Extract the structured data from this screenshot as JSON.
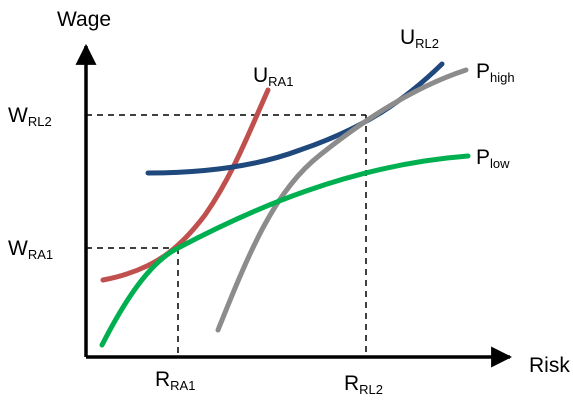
{
  "chart_data": {
    "type": "line",
    "xlabel": "Risk",
    "ylabel": "Wage",
    "grid": false,
    "legend": "none",
    "curves": [
      {
        "id": "u-ra1",
        "main": "U",
        "sub": "RA1",
        "color": "#c0504d"
      },
      {
        "id": "u-rl2",
        "main": "U",
        "sub": "RL2",
        "color": "#1f497d"
      },
      {
        "id": "p-high",
        "main": "P",
        "sub": "high",
        "color": "#8c8c8c"
      },
      {
        "id": "p-low",
        "main": "P",
        "sub": "low",
        "color": "#00b050"
      }
    ],
    "ticks": {
      "y": [
        {
          "id": "w-rl2",
          "main": "W",
          "sub": "RL2"
        },
        {
          "id": "w-ra1",
          "main": "W",
          "sub": "RA1"
        }
      ],
      "x": [
        {
          "id": "r-ra1",
          "main": "R",
          "sub": "RA1"
        },
        {
          "id": "r-rl2",
          "main": "R",
          "sub": "RL2"
        }
      ]
    }
  }
}
